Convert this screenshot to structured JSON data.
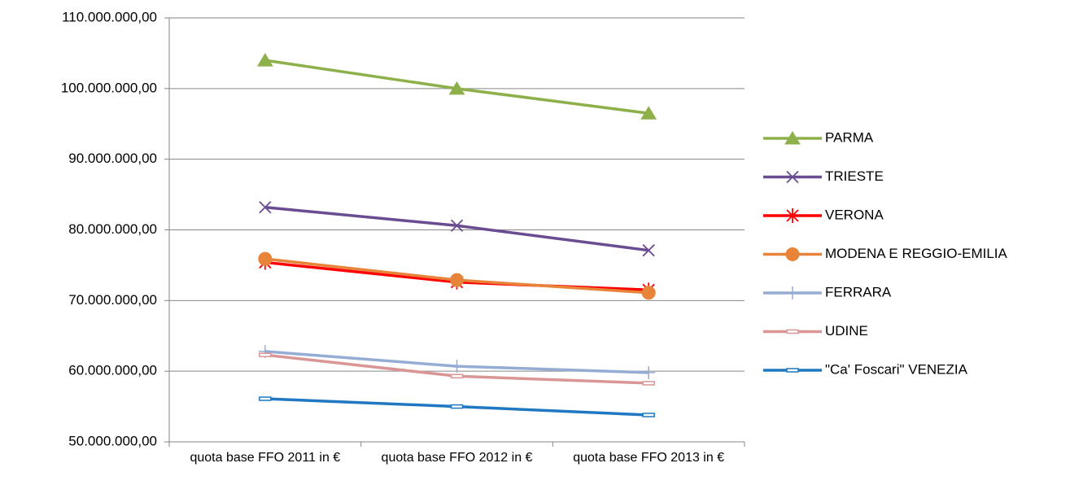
{
  "chart_data": {
    "type": "line",
    "categories": [
      "quota base FFO 2011 in €",
      "quota base FFO 2012 in €",
      "quota base FFO 2013 in €"
    ],
    "series": [
      {
        "name": "PARMA",
        "color": "#8db04a",
        "marker": "triangle",
        "values": [
          104000000,
          100000000,
          96500000
        ]
      },
      {
        "name": "TRIESTE",
        "color": "#6a4c93",
        "marker": "x",
        "values": [
          83200000,
          80600000,
          77100000
        ]
      },
      {
        "name": "VERONA",
        "color": "#ff0000",
        "marker": "star",
        "values": [
          75400000,
          72600000,
          71500000
        ]
      },
      {
        "name": "MODENA E REGGIO-EMILIA",
        "color": "#e8833a",
        "marker": "circle",
        "values": [
          75900000,
          72900000,
          71100000
        ]
      },
      {
        "name": "FERRARA",
        "color": "#95acd4",
        "marker": "plus",
        "values": [
          62800000,
          60700000,
          59800000
        ]
      },
      {
        "name": "UDINE",
        "color": "#d99694",
        "marker": "dash",
        "values": [
          62300000,
          59300000,
          58300000
        ]
      },
      {
        "name": "\"Ca' Foscari\" VENEZIA",
        "color": "#1f78c1",
        "marker": "dash",
        "values": [
          56100000,
          55000000,
          53800000
        ]
      }
    ],
    "ylim": [
      50000000,
      110000000
    ],
    "yticks": [
      {
        "value": 50000000,
        "label": "50.000.000,00"
      },
      {
        "value": 60000000,
        "label": "60.000.000,00"
      },
      {
        "value": 70000000,
        "label": "70.000.000,00"
      },
      {
        "value": 80000000,
        "label": "80.000.000,00"
      },
      {
        "value": 90000000,
        "label": "90.000.000,00"
      },
      {
        "value": 100000000,
        "label": "100.000.000,00"
      },
      {
        "value": 110000000,
        "label": "110.000.000,00"
      }
    ],
    "grid": true,
    "legend": "right"
  }
}
